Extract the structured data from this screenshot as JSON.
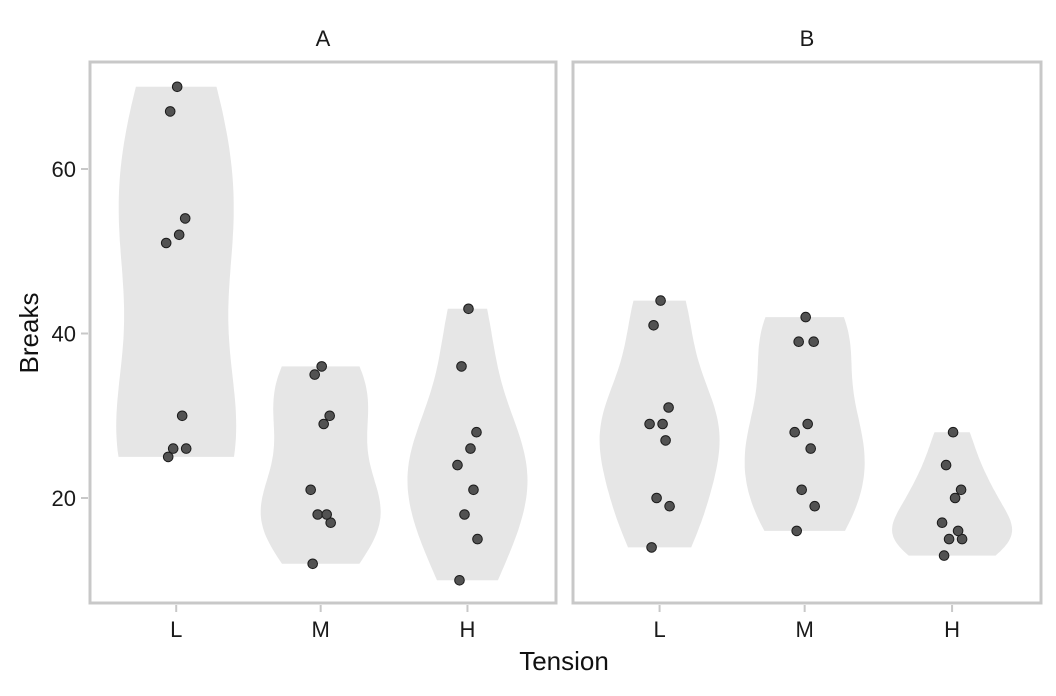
{
  "chart_data": {
    "type": "violin",
    "xlabel": "Tension",
    "ylabel": "Breaks",
    "categories": [
      "L",
      "M",
      "H"
    ],
    "y_ticks": [
      "20",
      "40",
      "60"
    ],
    "ylim": [
      7,
      73
    ],
    "grid": false,
    "panels": [
      {
        "label": "A",
        "groups": [
          {
            "category": "L",
            "values": [
              25,
              26,
              26,
              30,
              51,
              52,
              54,
              67,
              70
            ]
          },
          {
            "category": "M",
            "values": [
              12,
              17,
              18,
              18,
              21,
              29,
              30,
              35,
              36
            ]
          },
          {
            "category": "H",
            "values": [
              10,
              15,
              18,
              21,
              24,
              26,
              28,
              36,
              43
            ]
          }
        ]
      },
      {
        "label": "B",
        "groups": [
          {
            "category": "L",
            "values": [
              14,
              19,
              20,
              27,
              29,
              29,
              31,
              41,
              44
            ]
          },
          {
            "category": "M",
            "values": [
              16,
              19,
              21,
              26,
              28,
              29,
              39,
              39,
              42
            ]
          },
          {
            "category": "H",
            "values": [
              13,
              15,
              15,
              16,
              17,
              20,
              21,
              24,
              28
            ]
          }
        ]
      }
    ]
  }
}
